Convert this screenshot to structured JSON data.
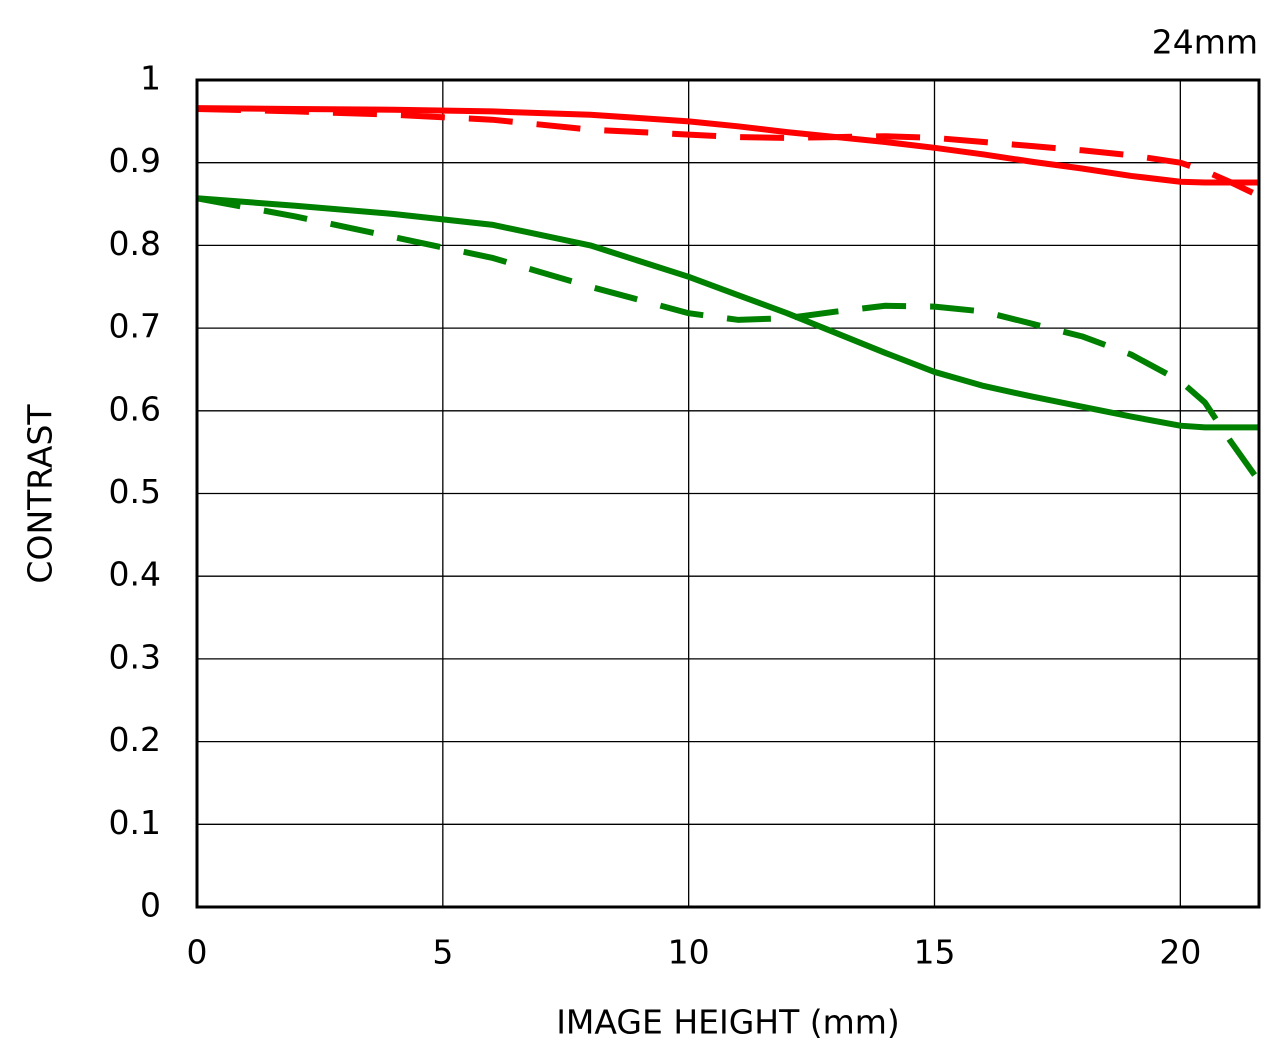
{
  "chart_data": {
    "type": "line",
    "annotation": "24mm",
    "x_label": "IMAGE HEIGHT (mm)",
    "y_label": "CONTRAST",
    "x": [
      0,
      2,
      4,
      6,
      8,
      10,
      11,
      12,
      13,
      14,
      15,
      16,
      17,
      18,
      19,
      20,
      20.5,
      21,
      21.6
    ],
    "series": [
      {
        "color": "#ff0000",
        "linestyle": "solid",
        "values": [
          0.966,
          0.965,
          0.964,
          0.962,
          0.958,
          0.95,
          0.944,
          0.937,
          0.931,
          0.925,
          0.918,
          0.91,
          0.901,
          0.893,
          0.884,
          0.877,
          0.876,
          0.876,
          0.876
        ]
      },
      {
        "color": "#ff0000",
        "linestyle": "dashed",
        "values": [
          0.965,
          0.962,
          0.958,
          0.952,
          0.94,
          0.934,
          0.931,
          0.93,
          0.931,
          0.932,
          0.93,
          0.925,
          0.92,
          0.915,
          0.909,
          0.9,
          0.89,
          0.877,
          0.86
        ]
      },
      {
        "color": "#008000",
        "linestyle": "solid",
        "values": [
          0.857,
          0.848,
          0.838,
          0.825,
          0.8,
          0.762,
          0.74,
          0.718,
          0.694,
          0.67,
          0.647,
          0.63,
          0.617,
          0.605,
          0.593,
          0.582,
          0.58,
          0.58,
          0.58
        ]
      },
      {
        "color": "#008000",
        "linestyle": "dashed",
        "values": [
          0.857,
          0.835,
          0.81,
          0.785,
          0.75,
          0.718,
          0.71,
          0.712,
          0.72,
          0.727,
          0.726,
          0.72,
          0.705,
          0.69,
          0.668,
          0.636,
          0.61,
          0.565,
          0.515
        ]
      }
    ],
    "xlim": [
      0,
      21.6
    ],
    "ylim": [
      0,
      1
    ],
    "xticks": [
      0,
      5,
      10,
      15,
      20
    ],
    "yticks": [
      0,
      0.1,
      0.2,
      0.3,
      0.4,
      0.5,
      0.6,
      0.7,
      0.8,
      0.9,
      1
    ],
    "grid": true
  }
}
